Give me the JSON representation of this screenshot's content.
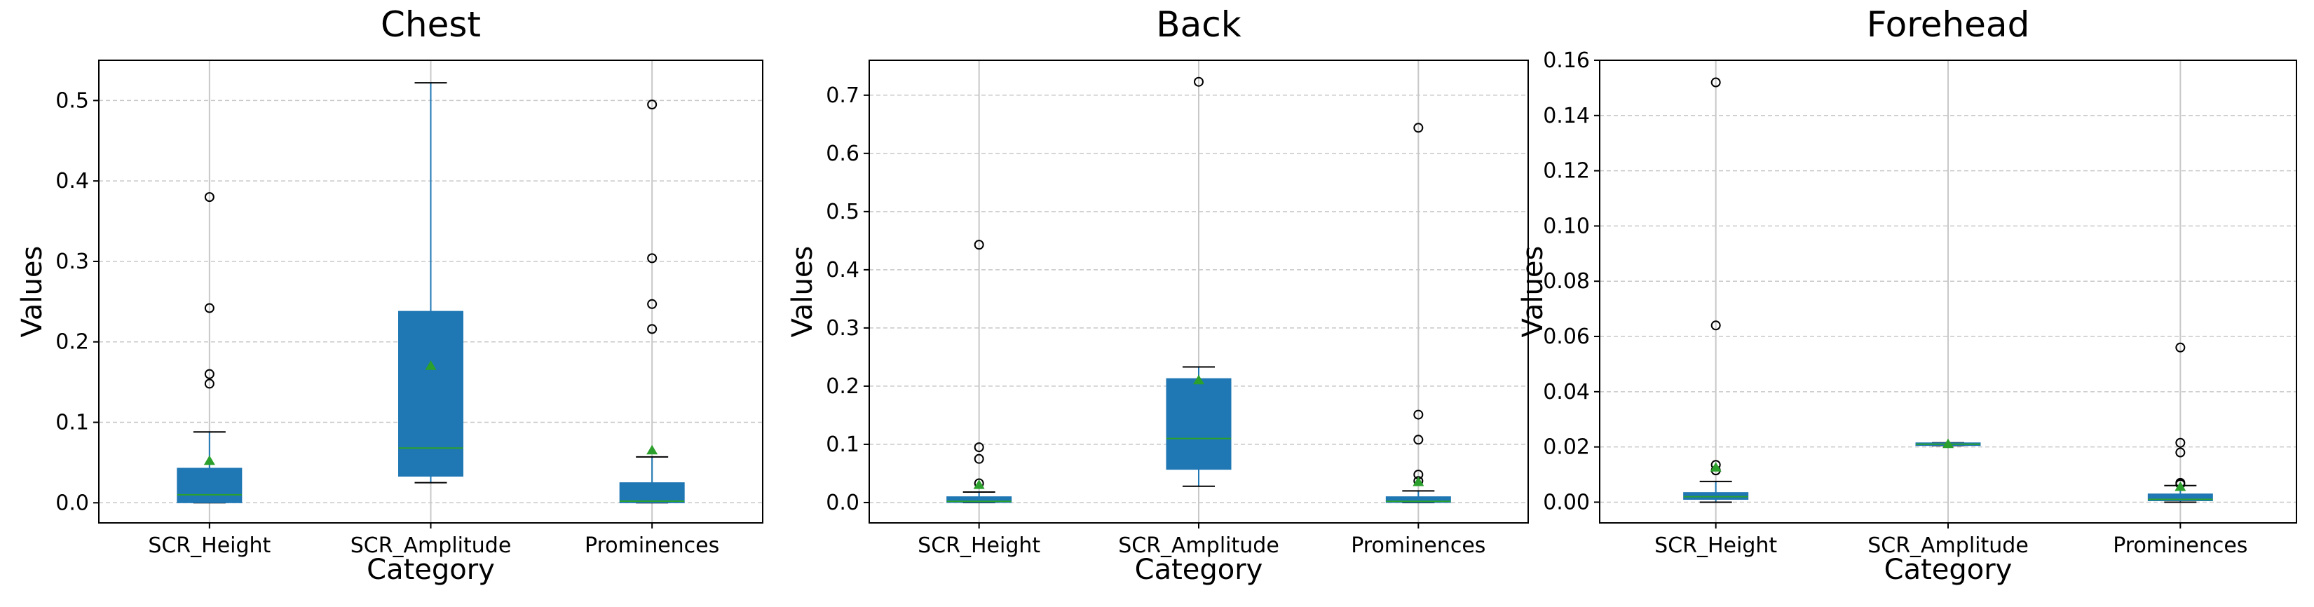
{
  "chart_data": [
    {
      "type": "box",
      "title": "Chest",
      "xlabel": "Category",
      "ylabel": "Values",
      "categories": [
        "SCR_Height",
        "SCR_Amplitude",
        "Prominences"
      ],
      "ylim": [
        -0.025,
        0.55
      ],
      "yticks": [
        0.0,
        0.1,
        0.2,
        0.3,
        0.4,
        0.5
      ],
      "ytick_labels": [
        "0.0",
        "0.1",
        "0.2",
        "0.3",
        "0.4",
        "0.5"
      ],
      "grid": "y",
      "boxes": [
        {
          "q1": 0.0,
          "median": 0.01,
          "q3": 0.043,
          "whisker_low": 0.0,
          "whisker_high": 0.088,
          "mean": 0.052,
          "fliers": [
            0.148,
            0.16,
            0.242,
            0.38
          ]
        },
        {
          "q1": 0.033,
          "median": 0.068,
          "q3": 0.238,
          "whisker_low": 0.025,
          "whisker_high": 0.522,
          "mean": 0.17,
          "fliers": []
        },
        {
          "q1": 0.0,
          "median": 0.002,
          "q3": 0.025,
          "whisker_low": 0.0,
          "whisker_high": 0.057,
          "mean": 0.065,
          "fliers": [
            0.216,
            0.247,
            0.304,
            0.495
          ]
        }
      ]
    },
    {
      "type": "box",
      "title": "Back",
      "xlabel": "Category",
      "ylabel": "Values",
      "categories": [
        "SCR_Height",
        "SCR_Amplitude",
        "Prominences"
      ],
      "ylim": [
        -0.035,
        0.76
      ],
      "yticks": [
        0.0,
        0.1,
        0.2,
        0.3,
        0.4,
        0.5,
        0.6,
        0.7
      ],
      "ytick_labels": [
        "0.0",
        "0.1",
        "0.2",
        "0.3",
        "0.4",
        "0.5",
        "0.6",
        "0.7"
      ],
      "grid": "y",
      "boxes": [
        {
          "q1": 0.0,
          "median": 0.002,
          "q3": 0.01,
          "whisker_low": 0.0,
          "whisker_high": 0.018,
          "mean": 0.03,
          "fliers": [
            0.033,
            0.075,
            0.095,
            0.443
          ]
        },
        {
          "q1": 0.057,
          "median": 0.11,
          "q3": 0.213,
          "whisker_low": 0.028,
          "whisker_high": 0.233,
          "mean": 0.21,
          "fliers": [
            0.723
          ]
        },
        {
          "q1": 0.0,
          "median": 0.002,
          "q3": 0.01,
          "whisker_low": 0.0,
          "whisker_high": 0.02,
          "mean": 0.035,
          "fliers": [
            0.037,
            0.048,
            0.108,
            0.151,
            0.644
          ]
        }
      ]
    },
    {
      "type": "box",
      "title": "Forehead",
      "xlabel": "Category",
      "ylabel": "Values",
      "categories": [
        "SCR_Height",
        "SCR_Amplitude",
        "Prominences"
      ],
      "ylim": [
        -0.0075,
        0.16
      ],
      "yticks": [
        0.0,
        0.02,
        0.04,
        0.06,
        0.08,
        0.1,
        0.12,
        0.14,
        0.16
      ],
      "ytick_labels": [
        "0.00",
        "0.02",
        "0.04",
        "0.06",
        "0.08",
        "0.10",
        "0.12",
        "0.14",
        "0.16"
      ],
      "grid": "y",
      "boxes": [
        {
          "q1": 0.001,
          "median": 0.002,
          "q3": 0.0035,
          "whisker_low": 0.0,
          "whisker_high": 0.0075,
          "mean": 0.0125,
          "fliers": [
            0.0115,
            0.0135,
            0.064,
            0.152
          ]
        },
        {
          "q1": 0.0205,
          "median": 0.021,
          "q3": 0.0215,
          "whisker_low": 0.0205,
          "whisker_high": 0.0215,
          "mean": 0.021,
          "fliers": []
        },
        {
          "q1": 0.0005,
          "median": 0.001,
          "q3": 0.003,
          "whisker_low": 0.0,
          "whisker_high": 0.006,
          "mean": 0.0055,
          "fliers": [
            0.0065,
            0.007,
            0.018,
            0.0215,
            0.056
          ]
        }
      ]
    }
  ],
  "colors": {
    "box_fill": "#1f77b4",
    "whisker": "#1f77b4",
    "median": "#2ca02c",
    "mean_marker": "#2ca02c",
    "cap": "#000000",
    "flier_edge": "#000000",
    "category_line": "#c8c8c8",
    "grid": "#c8c8c8",
    "frame": "#000000"
  }
}
